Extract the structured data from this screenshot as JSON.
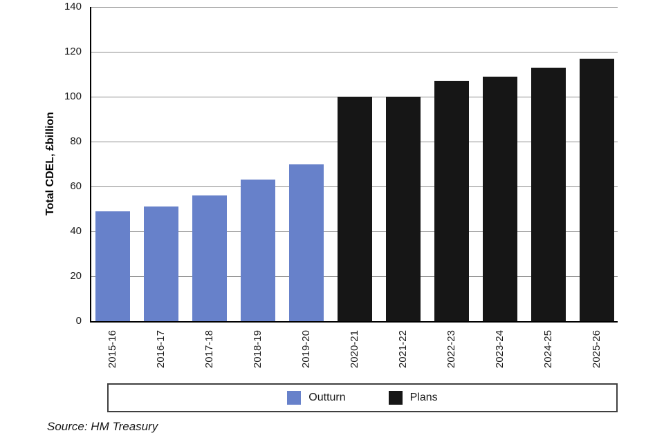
{
  "chart_data": {
    "type": "bar",
    "title": "",
    "xlabel": "",
    "ylabel": "Total CDEL, £billion",
    "ylim": [
      0,
      140
    ],
    "yticks": [
      0,
      20,
      40,
      60,
      80,
      100,
      120,
      140
    ],
    "grid": true,
    "grid_color": "#8a8a8a",
    "axis_color": "#000000",
    "legend_position": "bottom",
    "categories": [
      "2015-16",
      "2016-17",
      "2017-18",
      "2018-19",
      "2019-20",
      "2020-21",
      "2021-22",
      "2022-23",
      "2023-24",
      "2024-25",
      "2025-26"
    ],
    "series": [
      {
        "name": "Outturn",
        "color": "#6781CA",
        "values": [
          49,
          51,
          56,
          63,
          70,
          null,
          null,
          null,
          null,
          null,
          null
        ]
      },
      {
        "name": "Plans",
        "color": "#161616",
        "values": [
          null,
          null,
          null,
          null,
          null,
          100,
          100,
          107,
          109,
          113,
          117
        ]
      }
    ]
  },
  "source_note": "Source: HM Treasury"
}
